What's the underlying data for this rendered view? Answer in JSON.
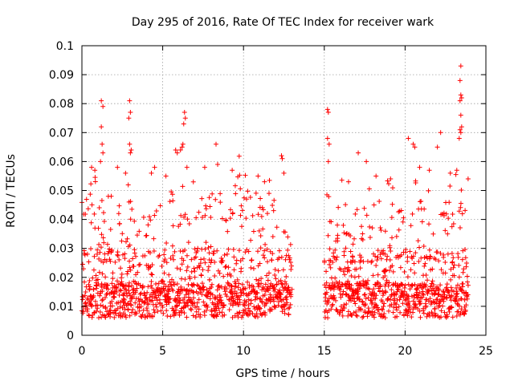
{
  "chart_data": {
    "type": "scatter",
    "title": "Day 295 of 2016, Rate Of TEC Index for receiver wark",
    "xlabel": "GPS time / hours",
    "ylabel": "ROTI / TECUs",
    "xlim": [
      0,
      25
    ],
    "ylim": [
      0,
      0.1
    ],
    "xticks": [
      "0",
      "5",
      "10",
      "15",
      "20",
      "25"
    ],
    "yticks": [
      "0",
      "0.01",
      "0.02",
      "0.03",
      "0.04",
      "0.05",
      "0.06",
      "0.07",
      "0.08",
      "0.09",
      "0.1"
    ],
    "grid": true,
    "marker": "+",
    "color": "#ff0000",
    "data_gap_hours": [
      13.0,
      15.0
    ],
    "series": [
      {
        "name": "ROTI",
        "points": [
          [
            1.2,
            0.081
          ],
          [
            1.3,
            0.079
          ],
          [
            1.2,
            0.072
          ],
          [
            1.25,
            0.066
          ],
          [
            1.3,
            0.063
          ],
          [
            1.15,
            0.06
          ],
          [
            2.95,
            0.081
          ],
          [
            3.0,
            0.077
          ],
          [
            2.9,
            0.075
          ],
          [
            2.95,
            0.066
          ],
          [
            3.05,
            0.064
          ],
          [
            3.0,
            0.063
          ],
          [
            6.35,
            0.077
          ],
          [
            6.4,
            0.075
          ],
          [
            6.3,
            0.073
          ],
          [
            6.25,
            0.066
          ],
          [
            6.2,
            0.065
          ],
          [
            6.1,
            0.064
          ],
          [
            5.8,
            0.064
          ],
          [
            5.9,
            0.063
          ],
          [
            8.3,
            0.066
          ],
          [
            12.35,
            0.062
          ],
          [
            12.4,
            0.061
          ],
          [
            15.2,
            0.078
          ],
          [
            15.25,
            0.077
          ],
          [
            15.2,
            0.068
          ],
          [
            15.3,
            0.066
          ],
          [
            15.25,
            0.06
          ],
          [
            17.1,
            0.063
          ],
          [
            17.6,
            0.06
          ],
          [
            20.2,
            0.068
          ],
          [
            20.5,
            0.066
          ],
          [
            20.6,
            0.065
          ],
          [
            22.2,
            0.07
          ],
          [
            22.0,
            0.065
          ],
          [
            23.45,
            0.093
          ],
          [
            23.4,
            0.088
          ],
          [
            23.45,
            0.083
          ],
          [
            23.5,
            0.082
          ],
          [
            23.4,
            0.081
          ],
          [
            23.45,
            0.076
          ],
          [
            23.5,
            0.072
          ],
          [
            23.4,
            0.071
          ],
          [
            23.45,
            0.07
          ],
          [
            23.35,
            0.068
          ],
          [
            0.6,
            0.058
          ],
          [
            0.8,
            0.057
          ],
          [
            2.2,
            0.058
          ],
          [
            2.7,
            0.056
          ],
          [
            4.5,
            0.058
          ],
          [
            4.3,
            0.056
          ],
          [
            5.2,
            0.055
          ],
          [
            6.5,
            0.058
          ],
          [
            7.6,
            0.058
          ],
          [
            8.4,
            0.059
          ],
          [
            9.3,
            0.057
          ],
          [
            10.9,
            0.055
          ],
          [
            11.3,
            0.053
          ],
          [
            12.5,
            0.056
          ],
          [
            16.5,
            0.053
          ],
          [
            18.2,
            0.055
          ],
          [
            19.1,
            0.054
          ],
          [
            20.9,
            0.058
          ],
          [
            21.5,
            0.057
          ],
          [
            22.8,
            0.056
          ],
          [
            23.2,
            0.057
          ],
          [
            23.9,
            0.054
          ]
        ]
      }
    ]
  }
}
